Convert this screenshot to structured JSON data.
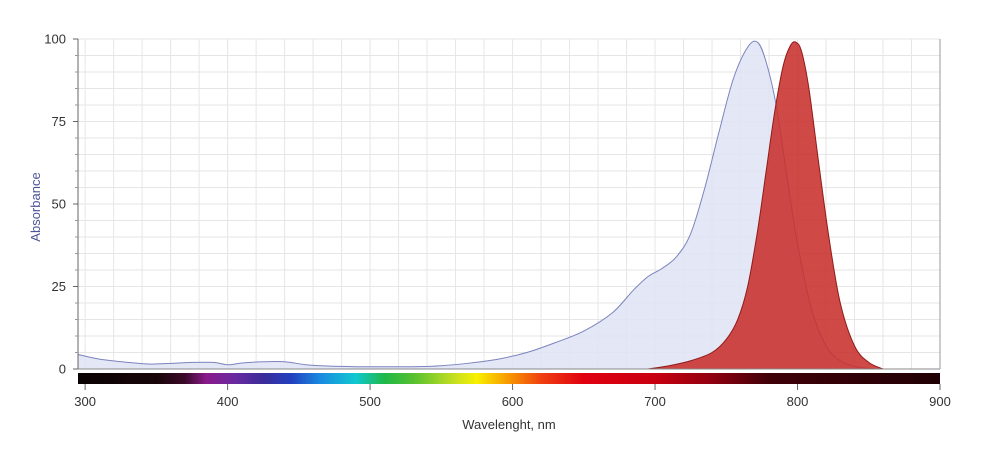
{
  "chart_data": {
    "type": "area",
    "xlabel": "Wavelenght, nm",
    "ylabel": "Absorbance",
    "xlim": [
      295,
      900
    ],
    "ylim": [
      0,
      100
    ],
    "x_ticks": [
      "300",
      "400",
      "500",
      "600",
      "700",
      "800",
      "900"
    ],
    "y_ticks": [
      "0",
      "25",
      "50",
      "75",
      "100"
    ],
    "grid": true,
    "colors": {
      "absorbance_fill": "#dfe3f5",
      "absorbance_line": "#7b84be",
      "emission_fill": "#c8302c",
      "emission_line": "#8e1c1a",
      "ylabel_color": "#4a559a"
    },
    "series": [
      {
        "values_role": "absorbance",
        "x": [
          295,
          310,
          330,
          345,
          360,
          375,
          390,
          400,
          410,
          425,
          440,
          455,
          470,
          490,
          510,
          530,
          550,
          570,
          590,
          610,
          630,
          650,
          670,
          685,
          695,
          705,
          715,
          725,
          735,
          745,
          755,
          765,
          772,
          778,
          785,
          792,
          800,
          810,
          820,
          830,
          840,
          850,
          858
        ],
        "y": [
          4.4,
          3.0,
          2.0,
          1.5,
          1.7,
          2.0,
          2.0,
          1.3,
          1.8,
          2.2,
          2.2,
          1.3,
          0.9,
          0.7,
          0.7,
          0.7,
          1.0,
          1.8,
          3.0,
          5.0,
          8.0,
          11.5,
          17.0,
          24.0,
          28.0,
          30.5,
          34.0,
          41.0,
          55.0,
          72.0,
          88.0,
          97.5,
          99.0,
          93.0,
          80.0,
          60.0,
          38.0,
          18.0,
          7.0,
          2.5,
          0.8,
          0.2,
          0.0
        ]
      },
      {
        "values_role": "emission",
        "x": [
          695,
          710,
          725,
          740,
          750,
          758,
          765,
          772,
          778,
          784,
          790,
          795,
          799,
          803,
          808,
          815,
          822,
          830,
          840,
          850,
          860
        ],
        "y": [
          0.0,
          1.0,
          2.5,
          5.0,
          9.0,
          15.0,
          25.0,
          42.0,
          60.0,
          78.0,
          92.0,
          98.0,
          99.0,
          96.0,
          85.0,
          62.0,
          40.0,
          20.0,
          7.0,
          2.0,
          0.0
        ]
      }
    ],
    "spectrum_bar": {
      "stops": [
        {
          "x": 295,
          "color": "#0a0203"
        },
        {
          "x": 350,
          "color": "#180508"
        },
        {
          "x": 370,
          "color": "#3a0a2a"
        },
        {
          "x": 385,
          "color": "#8a1a8a"
        },
        {
          "x": 405,
          "color": "#6a2aa0"
        },
        {
          "x": 425,
          "color": "#3a2c9a"
        },
        {
          "x": 445,
          "color": "#2240c0"
        },
        {
          "x": 465,
          "color": "#1a8ae0"
        },
        {
          "x": 490,
          "color": "#10c8d0"
        },
        {
          "x": 510,
          "color": "#1fb848"
        },
        {
          "x": 530,
          "color": "#55c030"
        },
        {
          "x": 560,
          "color": "#c8e020"
        },
        {
          "x": 575,
          "color": "#f8f000"
        },
        {
          "x": 595,
          "color": "#f8a000"
        },
        {
          "x": 620,
          "color": "#f04010"
        },
        {
          "x": 650,
          "color": "#e00010"
        },
        {
          "x": 700,
          "color": "#c80010"
        },
        {
          "x": 740,
          "color": "#900010"
        },
        {
          "x": 780,
          "color": "#400008"
        },
        {
          "x": 900,
          "color": "#200004"
        }
      ]
    }
  }
}
